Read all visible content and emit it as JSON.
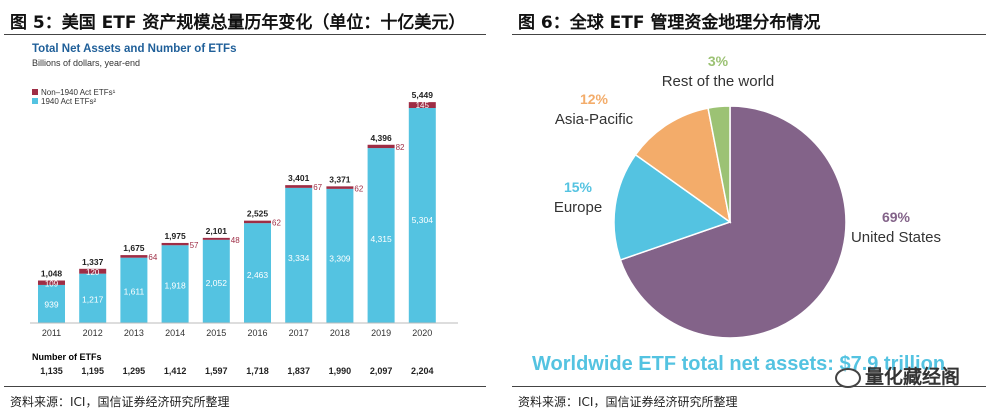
{
  "left_panel": {
    "figure_title": "图 5：美国 ETF 资产规模总量历年变化（单位：十亿美元）",
    "source": "资料来源：ICI，国信证券经济研究所整理"
  },
  "right_panel": {
    "figure_title": "图 6：全球 ETF 管理资金地理分布情况",
    "source": "资料来源：ICI，国信证券经济研究所整理",
    "watermark": "量化藏经阁"
  },
  "colors": {
    "act1940": "#54C3E1",
    "non1940": "#9E2D45",
    "title_blue": "#1F5F99",
    "pie_us": "#836389",
    "pie_europe": "#54C3E1",
    "pie_asia": "#F3AC6A",
    "pie_row": "#9CC274"
  },
  "chart_data": [
    {
      "type": "bar",
      "title": "Total Net Assets and Number of ETFs",
      "subtitle": "Billions of dollars, year-end",
      "legend": [
        "Non–1940 Act ETFs¹",
        "1940 Act ETFs²"
      ],
      "categories": [
        "2011",
        "2012",
        "2013",
        "2014",
        "2015",
        "2016",
        "2017",
        "2018",
        "2019",
        "2020"
      ],
      "series": [
        {
          "name": "1940 Act ETFs",
          "values": [
            939,
            1217,
            1611,
            1918,
            2052,
            2463,
            3334,
            3309,
            4315,
            5304
          ]
        },
        {
          "name": "Non–1940 Act ETFs",
          "values": [
            109,
            120,
            64,
            57,
            48,
            62,
            67,
            62,
            82,
            145
          ]
        }
      ],
      "totals": [
        1048,
        1337,
        1675,
        1975,
        2101,
        2525,
        3401,
        3371,
        4396,
        5449
      ],
      "number_label": "Number of ETFs",
      "number_of_etfs": [
        "1,135",
        "1,195",
        "1,295",
        "1,412",
        "1,597",
        "1,718",
        "1,837",
        "1,990",
        "2,097",
        "2,204"
      ],
      "ylim": [
        0,
        5600
      ]
    },
    {
      "type": "pie",
      "title": "Worldwide ETF total net assets: $7.9 trillion",
      "slices": [
        {
          "label": "United States",
          "pct_label": "69%",
          "value": 69
        },
        {
          "label": "Europe",
          "pct_label": "15%",
          "value": 15
        },
        {
          "label": "Asia-Pacific",
          "pct_label": "12%",
          "value": 12
        },
        {
          "label": "Rest of the world",
          "pct_label": "3%",
          "value": 3
        }
      ]
    }
  ]
}
